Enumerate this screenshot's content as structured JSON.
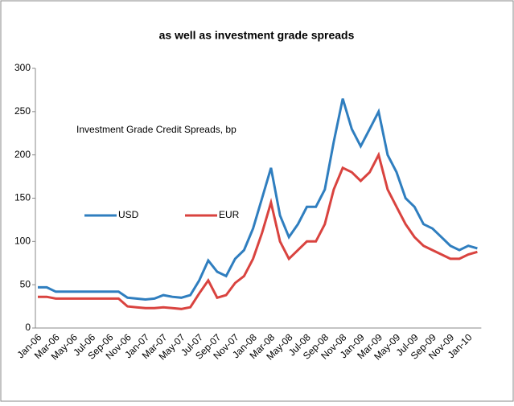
{
  "chart_data": {
    "type": "line",
    "title": "as well as investment grade spreads",
    "annotation": "Investment Grade  Credit Spreads, bp",
    "categories": [
      "Jan-06",
      null,
      "Mar-06",
      null,
      "May-06",
      null,
      "Jul-06",
      null,
      "Sep-06",
      null,
      "Nov-06",
      null,
      "Jan-07",
      null,
      "Mar-07",
      null,
      "May-07",
      null,
      "Jul-07",
      null,
      "Sep-07",
      null,
      "Nov-07",
      null,
      "Jan-08",
      null,
      "Mar-08",
      null,
      "May-08",
      null,
      "Jul-08",
      null,
      "Sep-08",
      null,
      "Nov-08",
      null,
      "Jan-09",
      null,
      "Mar-09",
      null,
      "May-09",
      null,
      "Jul-09",
      null,
      "Sep-09",
      null,
      "Nov-09",
      null,
      "Jan-10",
      null
    ],
    "series": [
      {
        "name": "USD",
        "color": "#2f7ebf",
        "values": [
          47,
          47,
          42,
          42,
          42,
          42,
          42,
          42,
          42,
          42,
          35,
          34,
          33,
          34,
          38,
          36,
          35,
          38,
          55,
          78,
          65,
          60,
          80,
          90,
          115,
          150,
          185,
          130,
          105,
          120,
          140,
          140,
          160,
          215,
          265,
          230,
          210,
          230,
          250,
          200,
          180,
          150,
          140,
          120,
          115,
          105,
          95,
          90,
          95,
          92
        ]
      },
      {
        "name": "EUR",
        "color": "#d9433f",
        "values": [
          36,
          36,
          34,
          34,
          34,
          34,
          34,
          34,
          34,
          34,
          25,
          24,
          23,
          23,
          24,
          23,
          22,
          24,
          40,
          55,
          35,
          38,
          52,
          60,
          80,
          110,
          145,
          100,
          80,
          90,
          100,
          100,
          120,
          160,
          185,
          180,
          170,
          180,
          200,
          160,
          140,
          120,
          105,
          95,
          90,
          85,
          80,
          80,
          85,
          88
        ]
      }
    ],
    "ylim": [
      0,
      300
    ],
    "yticks": [
      0,
      50,
      100,
      150,
      200,
      250,
      300
    ],
    "grid": false,
    "legend": "middle-left"
  }
}
